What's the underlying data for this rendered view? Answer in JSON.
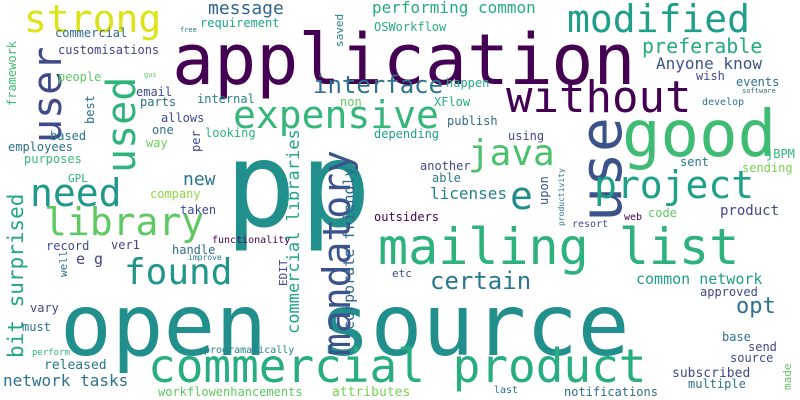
{
  "word_cloud": {
    "words": [
      {
        "text": "application",
        "color": "#440154"
      },
      {
        "text": "open source",
        "color": "#21908d"
      },
      {
        "text": "p",
        "color": "#21908d"
      },
      {
        "text": "p",
        "color": "#21908d"
      },
      {
        "text": "mailing list",
        "color": "#2db27d"
      },
      {
        "text": "commercial product",
        "color": "#27ad81"
      },
      {
        "text": "good",
        "color": "#3fbc73"
      },
      {
        "text": "use",
        "color": "#3b528b"
      },
      {
        "text": "without",
        "color": "#440154"
      },
      {
        "text": "modified",
        "color": "#1f9e89"
      },
      {
        "text": "strong",
        "color": "#dde318"
      },
      {
        "text": "user",
        "color": "#3e4a89"
      },
      {
        "text": "used",
        "color": "#2fb47c"
      },
      {
        "text": "expensive",
        "color": "#35b779"
      },
      {
        "text": "need",
        "color": "#1f9a8a"
      },
      {
        "text": "library",
        "color": "#5ec962"
      },
      {
        "text": "found",
        "color": "#1f958b"
      },
      {
        "text": "project",
        "color": "#1fa188"
      },
      {
        "text": "java",
        "color": "#4ac16d"
      },
      {
        "text": "e",
        "color": "#228c8d"
      },
      {
        "text": "mandatory",
        "color": "#3b528b"
      },
      {
        "text": "certain",
        "color": "#2a788e"
      },
      {
        "text": "interface",
        "color": "#2c718e"
      },
      {
        "text": "message",
        "color": "#32658e"
      },
      {
        "text": "performing common",
        "color": "#25ab82"
      },
      {
        "text": "preferable",
        "color": "#25ab82"
      },
      {
        "text": "Anyone know",
        "color": "#3b528b"
      },
      {
        "text": "bit surprised",
        "color": "#22a785"
      },
      {
        "text": "commercial libraries",
        "color": "#20a486"
      },
      {
        "text": "corporate friendly",
        "color": "#32658e"
      },
      {
        "text": "network tasks",
        "color": "#2c728e"
      },
      {
        "text": "new",
        "color": "#2a768e"
      },
      {
        "text": "common network",
        "color": "#1f9e89"
      },
      {
        "text": "opt",
        "color": "#2c718e"
      },
      {
        "text": "product",
        "color": "#3e4a89"
      },
      {
        "text": "licenses",
        "color": "#26828e"
      },
      {
        "text": "e g",
        "color": "#414487"
      },
      {
        "text": "released",
        "color": "#2a768e"
      },
      {
        "text": "subscribed",
        "color": "#3e4a89"
      },
      {
        "text": "multiple",
        "color": "#2c718e"
      },
      {
        "text": "notifications",
        "color": "#2e6e8e"
      },
      {
        "text": "attributes",
        "color": "#7ad151"
      },
      {
        "text": "workflowenhancements",
        "color": "#5ec962"
      },
      {
        "text": "source",
        "color": "#3e4a89"
      },
      {
        "text": "send",
        "color": "#3e4a89"
      },
      {
        "text": "base",
        "color": "#2c718e"
      },
      {
        "text": "approved",
        "color": "#3e4a89"
      },
      {
        "text": "made",
        "color": "#5ec962"
      },
      {
        "text": "requirement",
        "color": "#22a785"
      },
      {
        "text": "commercial",
        "color": "#31688e"
      },
      {
        "text": "customisations",
        "color": "#414487"
      },
      {
        "text": "people",
        "color": "#5ec962"
      },
      {
        "text": "email",
        "color": "#3e4a89"
      },
      {
        "text": "parts",
        "color": "#2c718e"
      },
      {
        "text": "internal",
        "color": "#26828e"
      },
      {
        "text": "allows",
        "color": "#3e4a89"
      },
      {
        "text": "one",
        "color": "#2e6e8e"
      },
      {
        "text": "way",
        "color": "#6ece58"
      },
      {
        "text": "looking",
        "color": "#2fb47c"
      },
      {
        "text": "based",
        "color": "#2a768e"
      },
      {
        "text": "employees",
        "color": "#2c718e"
      },
      {
        "text": "purposes",
        "color": "#38b977"
      },
      {
        "text": "GPL",
        "color": "#2fb47c"
      },
      {
        "text": "company",
        "color": "#8fd744"
      },
      {
        "text": "taken",
        "color": "#3e4a89"
      },
      {
        "text": "ver1",
        "color": "#414487"
      },
      {
        "text": "record",
        "color": "#3e4a89"
      },
      {
        "text": "well",
        "color": "#2c718e"
      },
      {
        "text": "handle",
        "color": "#2e6e8e"
      },
      {
        "text": "functionality",
        "color": "#440154"
      },
      {
        "text": "improve",
        "color": "#2a768e"
      },
      {
        "text": "EDIT",
        "color": "#3e4a89"
      },
      {
        "text": "etc",
        "color": "#3e4a89"
      },
      {
        "text": "vary",
        "color": "#3e4a89"
      },
      {
        "text": "must",
        "color": "#2c718e"
      },
      {
        "text": "perform",
        "color": "#2fb47c"
      },
      {
        "text": "programatically",
        "color": "#26828e"
      },
      {
        "text": "last",
        "color": "#2e6e8e"
      },
      {
        "text": "saved",
        "color": "#26828e"
      },
      {
        "text": "OSWorkflow",
        "color": "#26ad81"
      },
      {
        "text": "happen",
        "color": "#26ad81"
      },
      {
        "text": "XFlow",
        "color": "#26ad81"
      },
      {
        "text": "publish",
        "color": "#31688e"
      },
      {
        "text": "using",
        "color": "#3e4a89"
      },
      {
        "text": "depending",
        "color": "#1f9e89"
      },
      {
        "text": "another",
        "color": "#3e4a89"
      },
      {
        "text": "able",
        "color": "#2a788e"
      },
      {
        "text": "upon",
        "color": "#3b528b"
      },
      {
        "text": "outsiders",
        "color": "#440154"
      },
      {
        "text": "productivity",
        "color": "#2c718e"
      },
      {
        "text": "resort",
        "color": "#3e4a89"
      },
      {
        "text": "web",
        "color": "#440154"
      },
      {
        "text": "code",
        "color": "#5ec962"
      },
      {
        "text": "jBPM",
        "color": "#2fb47c"
      },
      {
        "text": "sending",
        "color": "#7ad151"
      },
      {
        "text": "sent",
        "color": "#2a788e"
      },
      {
        "text": "develop",
        "color": "#2c718e"
      },
      {
        "text": "events",
        "color": "#2c718e"
      },
      {
        "text": "wish",
        "color": "#3e4a89"
      },
      {
        "text": "software",
        "color": "#2e6e8e"
      },
      {
        "text": "non",
        "color": "#5ec962"
      },
      {
        "text": "best",
        "color": "#2e6e8e"
      },
      {
        "text": "framework",
        "color": "#3fbc73"
      },
      {
        "text": "free",
        "color": "#2a788e"
      },
      {
        "text": "gus",
        "color": "#5ec962"
      },
      {
        "text": "per",
        "color": "#3e4a89"
      }
    ]
  }
}
